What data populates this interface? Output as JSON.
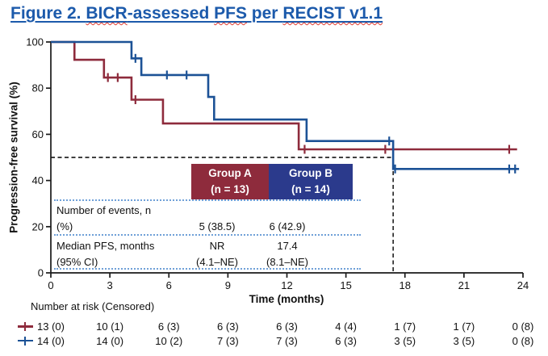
{
  "title": {
    "full_text": "Figure 2. BICR-assessed PFS per RECIST v1.1",
    "color": "#1C5AAB",
    "segments": [
      {
        "text": "Figure 2. ",
        "wavy": false
      },
      {
        "text": "BICR",
        "wavy": true
      },
      {
        "text": "-assessed ",
        "wavy": false
      },
      {
        "text": "PFS",
        "wavy": true
      },
      {
        "text": " per ",
        "wavy": false
      },
      {
        "text": "RECIST v1.1",
        "wavy": true
      }
    ]
  },
  "chart_data": {
    "type": "line",
    "subtype": "kaplan_meier_step",
    "title": "",
    "xlabel": "Time (months)",
    "ylabel": "Progression-free survival (%)",
    "xlim": [
      0,
      24
    ],
    "ylim": [
      0,
      100
    ],
    "x_ticks": [
      0,
      3,
      6,
      9,
      12,
      15,
      18,
      21,
      24
    ],
    "y_ticks": [
      0,
      20,
      40,
      60,
      80,
      100
    ],
    "grid": false,
    "legend_position": "none",
    "reference_lines": {
      "style": "dashed",
      "horizontal_y": 50,
      "vertical_x": 17.4
    },
    "series": [
      {
        "name": "Group A",
        "n": 13,
        "color": "#8E2B3C",
        "steps_pct": [
          [
            0,
            100
          ],
          [
            1.2,
            92.3
          ],
          [
            2.7,
            84.6
          ],
          [
            4.1,
            75.0
          ],
          [
            5.7,
            64.7
          ],
          [
            12.6,
            53.5
          ]
        ],
        "end_x": 23.7,
        "censor_marks": [
          [
            2.9,
            84.6
          ],
          [
            3.4,
            84.6
          ],
          [
            4.3,
            75.0
          ],
          [
            12.9,
            53.5
          ],
          [
            17.0,
            53.5
          ],
          [
            23.3,
            53.5
          ]
        ]
      },
      {
        "name": "Group B",
        "n": 14,
        "color": "#1C5296",
        "steps_pct": [
          [
            0,
            100
          ],
          [
            4.1,
            92.9
          ],
          [
            4.6,
            85.7
          ],
          [
            8.0,
            76.2
          ],
          [
            8.3,
            66.4
          ],
          [
            13.0,
            57.1
          ],
          [
            17.4,
            45.0
          ]
        ],
        "end_x": 23.8,
        "censor_marks": [
          [
            4.3,
            92.9
          ],
          [
            5.9,
            85.7
          ],
          [
            6.9,
            85.7
          ],
          [
            17.2,
            57.1
          ],
          [
            17.5,
            45.0
          ],
          [
            23.3,
            45.0
          ],
          [
            23.6,
            45.0
          ]
        ]
      }
    ]
  },
  "inset_table": {
    "columns": [
      {
        "name": "Group A",
        "n_label": "(n = 13)",
        "bg": "#8E2B3C"
      },
      {
        "name": "Group B",
        "n_label": "(n = 14)",
        "bg": "#2B3A8C"
      }
    ],
    "rows": [
      {
        "label1": "Number of events, n",
        "label2": "(%)",
        "a1": "",
        "a2": "5 (38.5)",
        "b1": "",
        "b2": "6 (42.9)"
      },
      {
        "label1": "Median PFS, months",
        "label2": "(95% CI)",
        "a1": "NR",
        "a2": "(4.1–NE)",
        "b1": "17.4",
        "b2": "(8.1–NE)"
      }
    ]
  },
  "risk_table": {
    "title": "Number at risk (Censored)",
    "rows": [
      {
        "group": "Group A",
        "color": "#8E2B3C",
        "values": [
          "13 (0)",
          "10 (1)",
          "6 (3)",
          "6 (3)",
          "6 (3)",
          "4 (4)",
          "1 (7)",
          "1 (7)",
          "0 (8)"
        ]
      },
      {
        "group": "Group B",
        "color": "#1C5296",
        "values": [
          "14 (0)",
          "14 (0)",
          "10 (2)",
          "7 (3)",
          "7 (3)",
          "6 (3)",
          "3 (5)",
          "3 (5)",
          "0 (8)"
        ]
      }
    ]
  },
  "colors": {
    "title_blue": "#1C5AAB",
    "group_a": "#8E2B3C",
    "group_b_line": "#1C5296",
    "group_b_header": "#2B3A8C",
    "dotted_separator": "#6FA0D8",
    "reference_dash": "#000000",
    "axis": "#1a1a1a"
  }
}
